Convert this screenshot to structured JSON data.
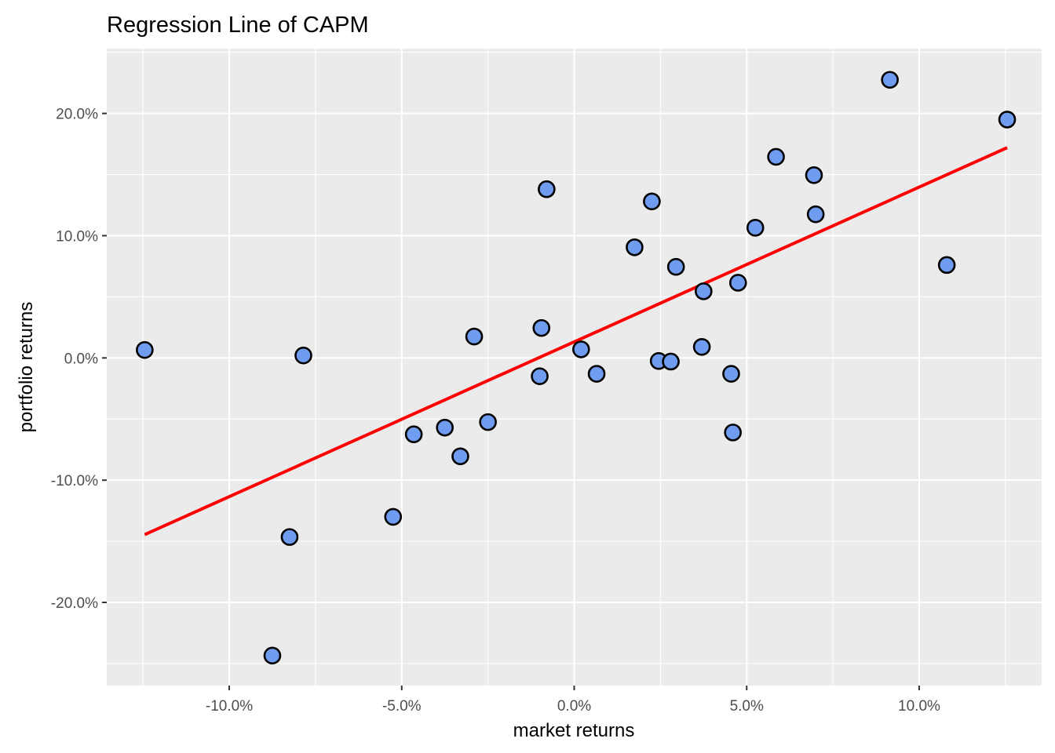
{
  "chart_data": {
    "type": "scatter",
    "title": "Regression Line of CAPM",
    "xlabel": "market returns",
    "ylabel": "portfolio returns",
    "xlim": [
      -0.1355,
      0.1355
    ],
    "ylim": [
      -0.268,
      0.253
    ],
    "x_ticks": [
      -0.1,
      -0.05,
      0.0,
      0.05,
      0.1
    ],
    "x_tick_labels": [
      "-10.0%",
      "-5.0%",
      "0.0%",
      "5.0%",
      "10.0%"
    ],
    "y_ticks": [
      -0.2,
      -0.1,
      0.0,
      0.1,
      0.2
    ],
    "y_tick_labels": [
      "-20.0%",
      "-10.0%",
      "0.0%",
      "10.0%",
      "20.0%"
    ],
    "grid": true,
    "background_color": "#ebebeb",
    "point_fill": "#6f9cee",
    "point_stroke": "#000000",
    "line_color": "#ff0000",
    "points": [
      {
        "x": -0.1245,
        "y": 0.0065
      },
      {
        "x": -0.0785,
        "y": 0.002
      },
      {
        "x": -0.0825,
        "y": -0.1465
      },
      {
        "x": -0.0875,
        "y": -0.2435
      },
      {
        "x": -0.0525,
        "y": -0.13
      },
      {
        "x": -0.0465,
        "y": -0.0625
      },
      {
        "x": -0.0375,
        "y": -0.057
      },
      {
        "x": -0.033,
        "y": -0.0805
      },
      {
        "x": -0.029,
        "y": 0.0175
      },
      {
        "x": -0.025,
        "y": -0.0525
      },
      {
        "x": -0.0095,
        "y": 0.0245
      },
      {
        "x": -0.01,
        "y": -0.015
      },
      {
        "x": -0.008,
        "y": 0.138
      },
      {
        "x": 0.002,
        "y": 0.007
      },
      {
        "x": 0.0065,
        "y": -0.013
      },
      {
        "x": 0.0175,
        "y": 0.0905
      },
      {
        "x": 0.0225,
        "y": 0.128
      },
      {
        "x": 0.0245,
        "y": -0.0025
      },
      {
        "x": 0.028,
        "y": -0.003
      },
      {
        "x": 0.0295,
        "y": 0.0745
      },
      {
        "x": 0.037,
        "y": 0.009
      },
      {
        "x": 0.0375,
        "y": 0.0545
      },
      {
        "x": 0.0455,
        "y": -0.013
      },
      {
        "x": 0.046,
        "y": -0.061
      },
      {
        "x": 0.0475,
        "y": 0.0615
      },
      {
        "x": 0.0525,
        "y": 0.1065
      },
      {
        "x": 0.0585,
        "y": 0.1645
      },
      {
        "x": 0.0695,
        "y": 0.1495
      },
      {
        "x": 0.07,
        "y": 0.1175
      },
      {
        "x": 0.0915,
        "y": 0.2275
      },
      {
        "x": 0.108,
        "y": 0.076
      },
      {
        "x": 0.1255,
        "y": 0.195
      }
    ],
    "regression_line": {
      "x": [
        -0.1245,
        0.1255
      ],
      "y": [
        -0.1445,
        0.172
      ]
    }
  }
}
